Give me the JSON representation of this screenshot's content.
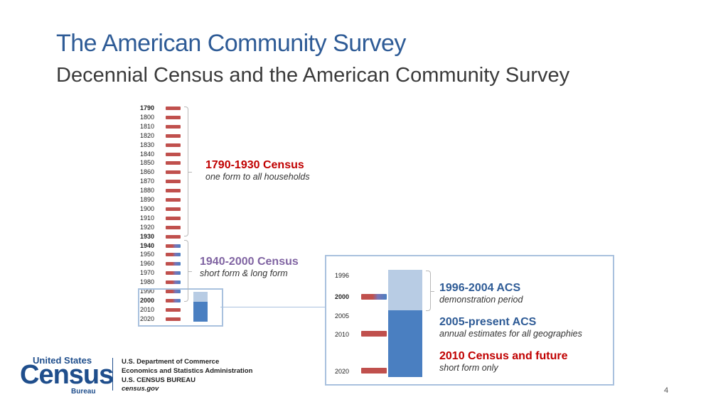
{
  "header": {
    "title": "The American Community Survey",
    "subtitle": "Decennial Census and the American Community Survey"
  },
  "timeline": {
    "years": [
      "1790",
      "1800",
      "1810",
      "1820",
      "1830",
      "1840",
      "1850",
      "1860",
      "1870",
      "1880",
      "1890",
      "1900",
      "1910",
      "1920",
      "1930",
      "1940",
      "1950",
      "1960",
      "1970",
      "1980",
      "1990",
      "2000",
      "2010",
      "2020"
    ],
    "bold_years": [
      "1790",
      "1930",
      "1940",
      "2000"
    ],
    "census_bar_color": "#c0504d",
    "acs_bar_color": "#4a7fc1"
  },
  "groups": {
    "early": {
      "title": "1790-1930 Census",
      "subtitle": "one form to all households",
      "color": "#c00000"
    },
    "mid": {
      "title": "1940-2000 Census",
      "subtitle": "short form & long form",
      "color": "#8064a2"
    }
  },
  "detail": {
    "years": {
      "y1996": "1996",
      "y2000": "2000",
      "y2005": "2005",
      "y2010": "2010",
      "y2020": "2020"
    },
    "acs_demo": {
      "title": "1996-2004 ACS",
      "subtitle": "demonstration period"
    },
    "acs_present": {
      "title": "2005-present ACS",
      "subtitle": "annual estimates for all geographies"
    },
    "census_future": {
      "title": "2010 Census and future",
      "subtitle": "short form only"
    }
  },
  "footer": {
    "logo_top": "United States",
    "logo_main": "Census",
    "logo_bottom": "Bureau",
    "dept_lines": [
      "U.S. Department of Commerce",
      "Economics and Statistics Administration",
      "U.S. CENSUS BUREAU",
      "census.gov"
    ],
    "page_number": "4"
  }
}
